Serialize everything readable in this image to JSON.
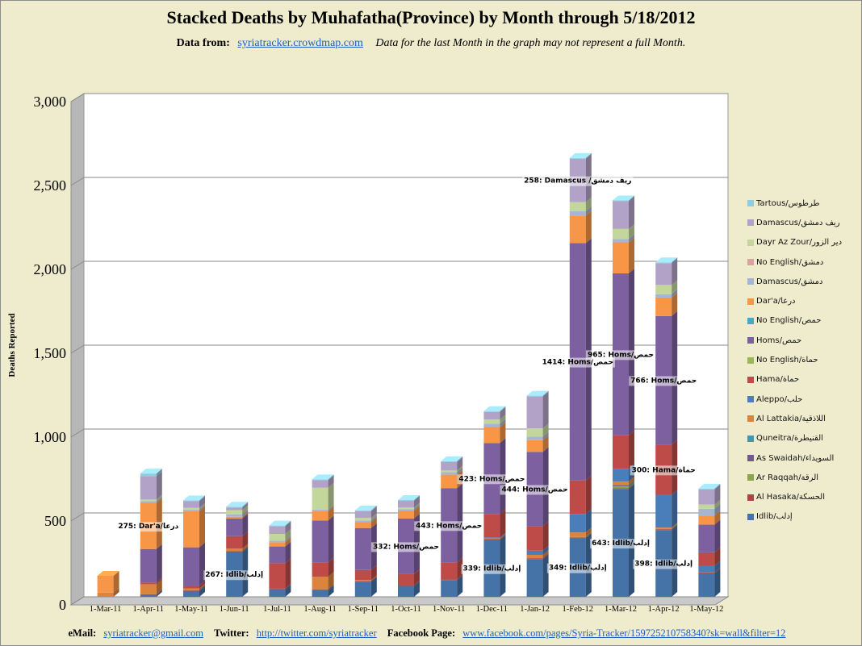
{
  "title": "Stacked Deaths by Muhafatha(Province) by Month through 5/18/2012",
  "subtitle": {
    "data_label": "Data from:",
    "link": "syriatracker.crowdmap.com",
    "note": "Data for the last Month in the graph may not represent a full Month."
  },
  "footer": {
    "email_label": "eMail:",
    "email": "syriatracker@gmail.com",
    "twitter_label": "Twitter:",
    "twitter": "http://twitter.com/syriatracker",
    "facebook_label": "Facebook  Page:",
    "facebook": "www.facebook.com/pages/Syria-Tracker/159725210758340?sk=wall&filter=12"
  },
  "chart_data": {
    "type": "bar",
    "stacked": true,
    "ylabel": "Deaths Reported",
    "ylim": [
      0,
      3000
    ],
    "yticks": [
      "0",
      "500",
      "1,000",
      "1,500",
      "2,000",
      "2,500",
      "3,000"
    ],
    "categories": [
      "1-Mar-11",
      "1-Apr-11",
      "1-May-11",
      "1-Jun-11",
      "1-Jul-11",
      "1-Aug-11",
      "1-Sep-11",
      "1-Oct-11",
      "1-Nov-11",
      "1-Dec-11",
      "1-Jan-12",
      "1-Feb-12",
      "1-Mar-12",
      "1-Apr-12",
      "1-May-12"
    ],
    "legend_position": "right",
    "series": [
      {
        "name": "Idlib/إدلب",
        "color": "#4572a7",
        "values": [
          0,
          10,
          35,
          267,
          45,
          40,
          90,
          65,
          100,
          339,
          225,
          349,
          643,
          398,
          140
        ]
      },
      {
        "name": "Al Hasaka/الحسكة",
        "color": "#aa4643",
        "values": [
          0,
          5,
          5,
          5,
          5,
          5,
          5,
          5,
          5,
          5,
          5,
          5,
          5,
          5,
          5
        ]
      },
      {
        "name": "Ar Raqqah/الرقة",
        "color": "#89a54e",
        "values": [
          0,
          0,
          0,
          0,
          0,
          0,
          0,
          0,
          0,
          0,
          0,
          5,
          10,
          5,
          0
        ]
      },
      {
        "name": "As Swaidah/السويداء",
        "color": "#71588f",
        "values": [
          0,
          0,
          0,
          0,
          0,
          0,
          0,
          0,
          0,
          0,
          0,
          0,
          5,
          0,
          0
        ]
      },
      {
        "name": "Quneitra/القنيطرة",
        "color": "#4198af",
        "values": [
          0,
          0,
          0,
          0,
          0,
          0,
          0,
          0,
          0,
          0,
          0,
          0,
          5,
          0,
          0
        ]
      },
      {
        "name": "Al Lattakia/اللاذقية",
        "color": "#db843d",
        "values": [
          25,
          60,
          10,
          15,
          0,
          75,
          5,
          0,
          0,
          5,
          20,
          25,
          20,
          5,
          0
        ]
      },
      {
        "name": "Aleppo/حلب",
        "color": "#4a7ebb",
        "values": [
          0,
          0,
          0,
          0,
          0,
          0,
          0,
          0,
          0,
          5,
          25,
          110,
          75,
          195,
          40
        ]
      },
      {
        "name": "Hama/حماة",
        "color": "#be4b48",
        "values": [
          0,
          10,
          15,
          75,
          150,
          85,
          60,
          65,
          100,
          140,
          145,
          200,
          200,
          300,
          80
        ]
      },
      {
        "name": "No English/حماة",
        "color": "#98b954",
        "values": [
          0,
          0,
          0,
          0,
          0,
          0,
          0,
          0,
          0,
          0,
          0,
          0,
          0,
          0,
          0
        ]
      },
      {
        "name": "Homs/حمص",
        "color": "#7d60a0",
        "values": [
          0,
          200,
          230,
          105,
          100,
          250,
          250,
          332,
          443,
          423,
          444,
          1414,
          965,
          766,
          165
        ]
      },
      {
        "name": "No English/حمص",
        "color": "#46aac5",
        "values": [
          0,
          0,
          0,
          0,
          0,
          0,
          0,
          0,
          0,
          0,
          0,
          0,
          0,
          0,
          0
        ]
      },
      {
        "name": "Dar'a/درعا",
        "color": "#f79646",
        "values": [
          100,
          275,
          215,
          10,
          25,
          55,
          35,
          45,
          80,
          95,
          70,
          165,
          185,
          110,
          55
        ]
      },
      {
        "name": "Damascus/دمشق",
        "color": "#a5b6d4",
        "values": [
          0,
          10,
          10,
          15,
          10,
          10,
          10,
          10,
          15,
          20,
          20,
          25,
          20,
          20,
          40
        ]
      },
      {
        "name": "No English/دمشق",
        "color": "#d9a3a1",
        "values": [
          0,
          0,
          0,
          0,
          0,
          0,
          0,
          0,
          0,
          0,
          0,
          0,
          0,
          0,
          0
        ]
      },
      {
        "name": "Dayr Az Zour/دير الزور",
        "color": "#c3d69b",
        "values": [
          0,
          10,
          10,
          25,
          40,
          130,
          15,
          10,
          10,
          25,
          50,
          55,
          60,
          55,
          25
        ]
      },
      {
        "name": "Damascus/ريف دمشق",
        "color": "#b3a2c7",
        "values": [
          0,
          140,
          40,
          15,
          45,
          45,
          40,
          40,
          50,
          45,
          190,
          258,
          165,
          130,
          90
        ]
      },
      {
        "name": "Tartous/طرطوس",
        "color": "#93cddd",
        "values": [
          0,
          15,
          5,
          5,
          5,
          5,
          5,
          5,
          5,
          5,
          5,
          5,
          5,
          5,
          5
        ]
      }
    ],
    "data_labels": [
      {
        "category": "1-Apr-11",
        "text": "275: Dar'a/درعا"
      },
      {
        "category": "1-Jun-11",
        "text": "267: Idlib/إدلب"
      },
      {
        "category": "1-Oct-11",
        "text": "332: Homs/حمص"
      },
      {
        "category": "1-Nov-11",
        "text": "443: Homs/حمص"
      },
      {
        "category": "1-Dec-11",
        "text": "339: Idlib/إدلب"
      },
      {
        "category": "1-Dec-11",
        "text": "423: Homs/حمص"
      },
      {
        "category": "1-Jan-12",
        "text": "444: Homs/حمص"
      },
      {
        "category": "1-Feb-12",
        "text": "349: Idlib/إدلب"
      },
      {
        "category": "1-Feb-12",
        "text": "1414: Homs/حمص"
      },
      {
        "category": "1-Feb-12",
        "text": "258: Damascus /ريف دمشق"
      },
      {
        "category": "1-Mar-12",
        "text": "643: Idlib/إدلب"
      },
      {
        "category": "1-Mar-12",
        "text": "965: Homs/حمص"
      },
      {
        "category": "1-Apr-12",
        "text": "398: Idlib/إدلب"
      },
      {
        "category": "1-Apr-12",
        "text": "766: Homs/حمص"
      },
      {
        "category": "1-Apr-12",
        "text": "300: Hama/حماة"
      }
    ]
  }
}
